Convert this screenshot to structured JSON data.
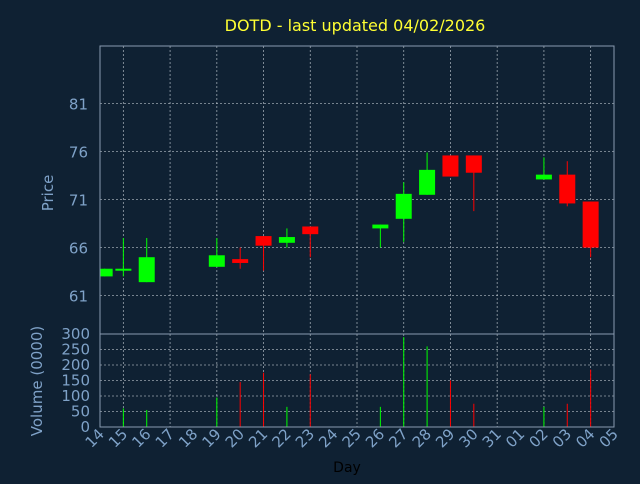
{
  "chart_data": {
    "type": "candlestick",
    "title": "DOTD - last updated 04/02/2026",
    "xlabel": "Day",
    "ylabel": "Price",
    "volume_label": "Volume (0000)",
    "grid": true,
    "colors": {
      "background": "#0f2133",
      "frame": "#8a9bb0",
      "grid": "#c8d0d8",
      "title": "#ffff33",
      "axis_text": "#7fa2c8",
      "up": "#00ff00",
      "down": "#ff0000"
    },
    "price_axis": {
      "ylim": [
        57,
        87
      ],
      "ticks": [
        61,
        66,
        71,
        76,
        81
      ]
    },
    "volume_axis": {
      "ylim": [
        0,
        300
      ],
      "ticks": [
        0,
        50,
        100,
        150,
        200,
        250,
        300
      ]
    },
    "x_ticks": [
      "14",
      "15",
      "16",
      "17",
      "18",
      "19",
      "20",
      "21",
      "22",
      "23",
      "24",
      "25",
      "26",
      "27",
      "28",
      "29",
      "30",
      "31",
      "01",
      "02",
      "03",
      "04",
      "05"
    ],
    "candles": [
      {
        "x": 0.2,
        "open": 63.0,
        "close": 63.8,
        "high": 63.8,
        "low": 63.0,
        "volume": 0
      },
      {
        "x": 1.0,
        "open": 63.6,
        "close": 63.8,
        "high": 67.0,
        "low": 63.0,
        "volume": 60
      },
      {
        "x": 2.0,
        "open": 62.4,
        "close": 65.0,
        "high": 67.0,
        "low": 62.4,
        "volume": 55
      },
      {
        "x": 5.0,
        "open": 64.0,
        "close": 65.2,
        "high": 67.0,
        "low": 64.0,
        "volume": 95
      },
      {
        "x": 6.0,
        "open": 64.8,
        "close": 64.4,
        "high": 66.0,
        "low": 63.8,
        "volume": 145
      },
      {
        "x": 7.0,
        "open": 67.2,
        "close": 66.2,
        "high": 67.2,
        "low": 63.6,
        "volume": 175
      },
      {
        "x": 8.0,
        "open": 66.5,
        "close": 67.1,
        "high": 68.0,
        "low": 66.0,
        "volume": 65
      },
      {
        "x": 9.0,
        "open": 68.2,
        "close": 67.4,
        "high": 68.2,
        "low": 65.0,
        "volume": 170
      },
      {
        "x": 12.0,
        "open": 68.0,
        "close": 68.4,
        "high": 68.4,
        "low": 66.0,
        "volume": 65
      },
      {
        "x": 13.0,
        "open": 69.0,
        "close": 71.6,
        "high": 72.8,
        "low": 66.6,
        "volume": 290
      },
      {
        "x": 14.0,
        "open": 71.5,
        "close": 74.1,
        "high": 75.9,
        "low": 71.5,
        "volume": 260
      },
      {
        "x": 15.0,
        "open": 75.6,
        "close": 73.4,
        "high": 75.6,
        "low": 73.4,
        "volume": 150
      },
      {
        "x": 16.0,
        "open": 75.6,
        "close": 73.8,
        "high": 75.6,
        "low": 69.8,
        "volume": 75
      },
      {
        "x": 19.0,
        "open": 73.1,
        "close": 73.6,
        "high": 75.4,
        "low": 73.1,
        "volume": 65
      },
      {
        "x": 20.0,
        "open": 73.6,
        "close": 70.6,
        "high": 75.0,
        "low": 70.3,
        "volume": 75
      },
      {
        "x": 21.0,
        "open": 70.8,
        "close": 66.0,
        "high": 70.8,
        "low": 65.0,
        "volume": 185
      }
    ]
  }
}
